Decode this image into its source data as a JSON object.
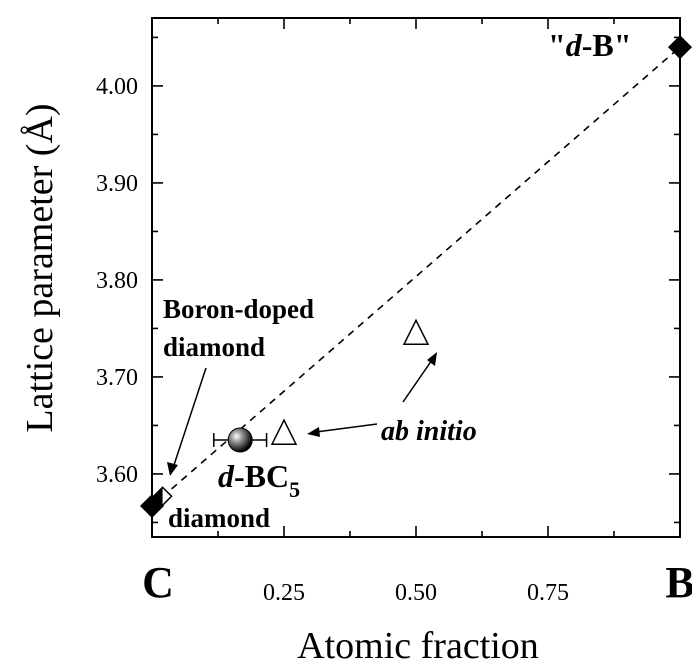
{
  "chart_data": {
    "type": "scatter",
    "xlabel": "Atomic fraction",
    "ylabel": "Lattice parameter (Å)",
    "xlim": [
      0,
      1
    ],
    "ylim": [
      3.535,
      4.07
    ],
    "x_ticks": [
      0.25,
      0.5,
      0.75
    ],
    "x_tick_labels": [
      "0.25",
      "0.50",
      "0.75"
    ],
    "y_ticks": [
      3.6,
      3.7,
      3.8,
      3.9,
      4.0
    ],
    "y_tick_labels": [
      "3.60",
      "3.70",
      "3.80",
      "3.90",
      "4.00"
    ],
    "x_end_labels": {
      "left": "C",
      "right": "B"
    },
    "series": [
      {
        "name": "diamond",
        "marker": "filled-diamond",
        "points": [
          {
            "x": 0.0,
            "y": 3.567
          }
        ]
      },
      {
        "name": "\"d-B\"",
        "marker": "filled-diamond",
        "points": [
          {
            "x": 1.0,
            "y": 4.04
          }
        ]
      },
      {
        "name": "d-BC5",
        "marker": "shaded-sphere",
        "points": [
          {
            "x": 0.167,
            "y": 3.635,
            "xerr": 0.05
          }
        ]
      },
      {
        "name": "ab initio",
        "marker": "open-triangle",
        "points": [
          {
            "x": 0.25,
            "y": 3.642
          },
          {
            "x": 0.5,
            "y": 3.745
          }
        ]
      },
      {
        "name": "Boron-doped diamond",
        "marker": "half-diamond",
        "points": [
          {
            "x": 0.02,
            "y": 3.577
          }
        ]
      }
    ],
    "dashed_line": {
      "from": [
        0.0,
        3.567
      ],
      "to": [
        1.0,
        4.04
      ]
    },
    "annotations": {
      "d_b": {
        "italic": "d",
        "text": "-B"
      },
      "boron_line1": "Boron-doped",
      "boron_line2": "diamond",
      "diamond": "diamond",
      "ab_initio": "ab initio",
      "dbc5": {
        "italic": "d",
        "text": "-BC",
        "sub": "5"
      }
    },
    "grid": false,
    "legend": "none"
  }
}
